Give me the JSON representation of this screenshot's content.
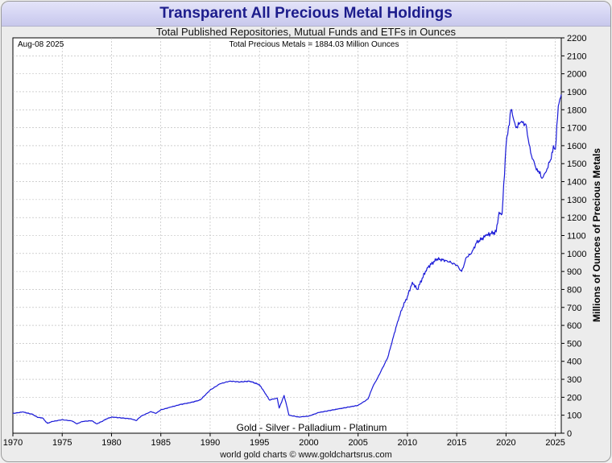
{
  "chart_data": {
    "type": "line",
    "title": "Transparent All Precious Metal Holdings",
    "subtitle": "Total Published Repositories, Mutual Funds and ETFs in Ounces",
    "date_label": "Aug-08  2025",
    "annotation": "Total Precious Metals = 1884.03 Million Ounces",
    "legend_text": "Gold - Silver - Palladium - Platinum",
    "ylabel": "Millions of Ounces of Precious Metals",
    "xlabel": "",
    "xlim": [
      1970,
      2025.6
    ],
    "ylim": [
      0,
      2200
    ],
    "x_ticks": [
      "1970",
      "1975",
      "1980",
      "1985",
      "1990",
      "1995",
      "2000",
      "2005",
      "2010",
      "2015",
      "2020",
      "2025"
    ],
    "y_ticks": [
      "0",
      "100",
      "200",
      "300",
      "400",
      "500",
      "600",
      "700",
      "800",
      "900",
      "1000",
      "1100",
      "1200",
      "1300",
      "1400",
      "1500",
      "1600",
      "1700",
      "1800",
      "1900",
      "2000",
      "2100",
      "2200"
    ],
    "line_color": "#1a1ad8",
    "series": [
      {
        "name": "Total Precious Metals",
        "x": [
          1970,
          1971,
          1972,
          1972.5,
          1973,
          1973.5,
          1974,
          1975,
          1976,
          1976.5,
          1977,
          1978,
          1978.5,
          1979,
          1979.5,
          1980,
          1981,
          1982,
          1982.5,
          1983,
          1984,
          1984.5,
          1985,
          1986,
          1987,
          1987.5,
          1988,
          1989,
          1990,
          1991,
          1992,
          1993,
          1994,
          1995,
          1995.5,
          1996,
          1996.8,
          1997,
          1997.5,
          1998,
          1999,
          2000,
          2001,
          2002,
          2003,
          2004,
          2005,
          2006,
          2006.5,
          2007,
          2008,
          2009,
          2009.5,
          2010,
          2010.5,
          2011,
          2012,
          2013,
          2014,
          2015,
          2015.5,
          2016,
          2016.5,
          2017,
          2018,
          2018.5,
          2019,
          2019.3,
          2019.6,
          2020,
          2020.5,
          2020.8,
          2021,
          2021.5,
          2022,
          2022.5,
          2023,
          2023.3,
          2023.6,
          2024,
          2024.5,
          2024.8,
          2025,
          2025.3,
          2025.6
        ],
        "values": [
          110,
          118,
          105,
          88,
          85,
          55,
          65,
          75,
          68,
          52,
          65,
          70,
          52,
          65,
          80,
          90,
          85,
          80,
          70,
          95,
          120,
          110,
          130,
          145,
          160,
          165,
          170,
          185,
          240,
          275,
          290,
          285,
          290,
          270,
          230,
          185,
          195,
          140,
          210,
          100,
          90,
          95,
          115,
          125,
          135,
          145,
          155,
          190,
          260,
          310,
          420,
          620,
          700,
          760,
          840,
          800,
          920,
          970,
          960,
          935,
          900,
          980,
          1000,
          1060,
          1100,
          1110,
          1120,
          1230,
          1220,
          1600,
          1800,
          1740,
          1700,
          1730,
          1720,
          1560,
          1480,
          1460,
          1420,
          1450,
          1520,
          1600,
          1580,
          1820,
          1884
        ]
      }
    ]
  },
  "footer": {
    "credit": "world gold charts © www.goldchartsrus.com"
  }
}
